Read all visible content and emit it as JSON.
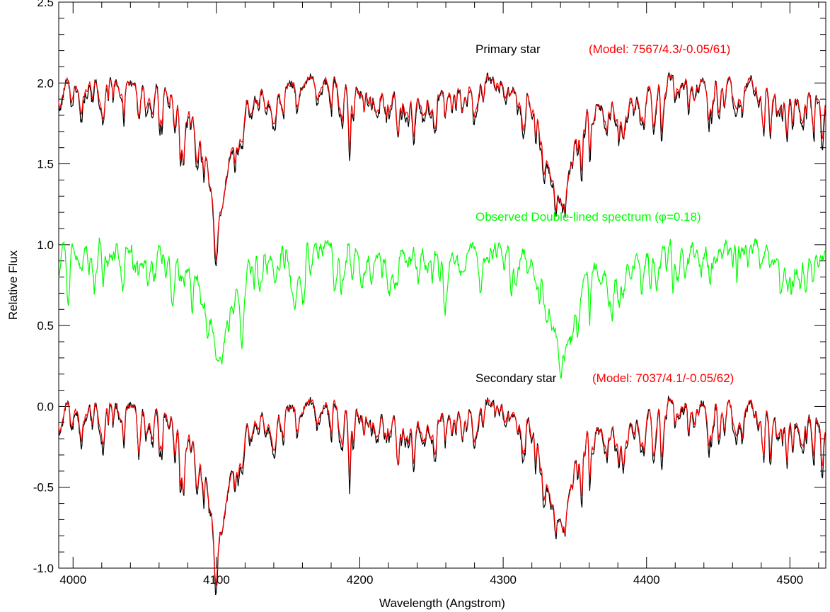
{
  "chart_data": {
    "type": "line",
    "xlabel": "Wavelength (Angstrom)",
    "ylabel": "Relative Flux",
    "xlim": [
      3990,
      4525
    ],
    "ylim": [
      -1.0,
      2.5
    ],
    "x_ticks": [
      4000,
      4100,
      4200,
      4300,
      4400,
      4500
    ],
    "y_ticks": [
      -1.0,
      -0.5,
      0.0,
      0.5,
      1.0,
      1.5,
      2.0,
      2.5
    ],
    "x_tick_labels": [
      "4000",
      "4100",
      "4200",
      "4300",
      "4400",
      "4500"
    ],
    "y_tick_labels": [
      "-1.0",
      "-0.5",
      "0.0",
      "0.5",
      "1.0",
      "1.5",
      "2.0",
      "2.5"
    ],
    "grid": false,
    "colors": {
      "observed": "#000000",
      "model": "#ff0000",
      "double_lined": "#00ff00"
    },
    "annotations": {
      "primary": "Primary star",
      "primary_model": "(Model: 7567/4.3/-0.05/61)",
      "double_lined_prefix": "Observed Double-lined spectrum (",
      "phi_symbol": "φ",
      "double_lined_suffix": "=0.18)",
      "secondary": "Secondary star",
      "secondary_model": "(Model: 7037/4.1/-0.05/62)"
    },
    "spectra": [
      {
        "continuum": 2.0,
        "lines": [
          {
            "center": 4101.7,
            "depth": 0.73,
            "width": 8.0
          },
          {
            "center": 4340.5,
            "depth": 0.72,
            "width": 8.5
          }
        ],
        "metal_lines": [
          {
            "center": 4077.0,
            "depth": 0.28
          },
          {
            "center": 4226.7,
            "depth": 0.23
          },
          {
            "center": 4481.2,
            "depth": 0.24
          },
          {
            "center": 4046.0,
            "depth": 0.12
          },
          {
            "center": 4271.5,
            "depth": 0.12
          },
          {
            "center": 4383.5,
            "depth": 0.12
          },
          {
            "center": 4404.8,
            "depth": 0.1
          }
        ]
      },
      {
        "continuum": 1.0,
        "lines": [
          {
            "center": 4102.5,
            "depth": 0.53,
            "width": 9.0
          },
          {
            "center": 4340.8,
            "depth": 0.58,
            "width": 10.0
          }
        ],
        "metal_lines": []
      },
      {
        "continuum": 0.0,
        "lines": [
          {
            "center": 4101.7,
            "depth": 0.72,
            "width": 8.0
          },
          {
            "center": 4340.5,
            "depth": 0.71,
            "width": 8.5
          }
        ],
        "metal_lines": [
          {
            "center": 4077.0,
            "depth": 0.32
          },
          {
            "center": 4226.7,
            "depth": 0.28
          },
          {
            "center": 4481.2,
            "depth": 0.26
          },
          {
            "center": 4046.0,
            "depth": 0.2
          },
          {
            "center": 4271.5,
            "depth": 0.15
          },
          {
            "center": 4383.5,
            "depth": 0.14
          },
          {
            "center": 4404.8,
            "depth": 0.13
          }
        ]
      }
    ]
  }
}
